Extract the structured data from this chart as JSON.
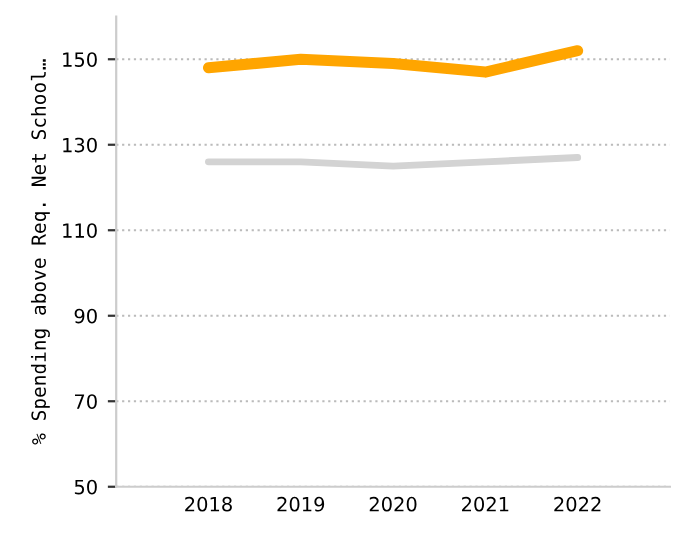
{
  "chart_data": {
    "type": "line",
    "ylabel": "% Spending above Req. Net School…",
    "categories": [
      "2018",
      "2019",
      "2020",
      "2021",
      "2022"
    ],
    "series": [
      {
        "color": "#ffa500",
        "values": [
          148,
          150,
          149,
          147,
          152
        ]
      },
      {
        "color": "#d3d3d3",
        "values": [
          126,
          126,
          125,
          126,
          127
        ]
      }
    ],
    "ylim": [
      50,
      160
    ],
    "yticks": [
      50,
      70,
      90,
      110,
      130,
      150
    ],
    "grid": "y",
    "legend": false,
    "marker": "none",
    "line_style": "solid"
  }
}
